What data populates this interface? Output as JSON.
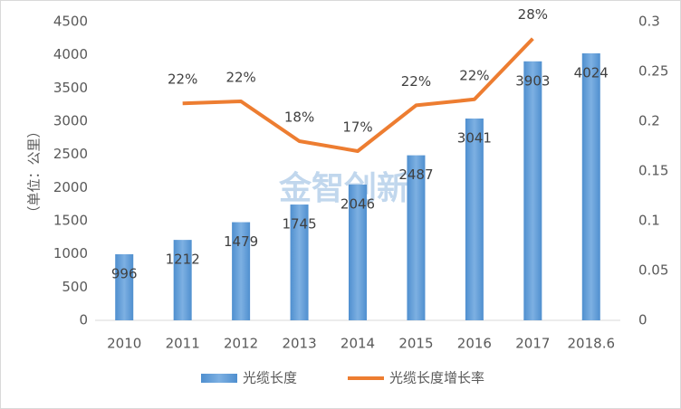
{
  "chart_data": {
    "type": "bar_line",
    "watermark": "金智创新",
    "y_label": "（单位：公里）",
    "categories": [
      "2010",
      "2011",
      "2012",
      "2013",
      "2014",
      "2015",
      "2016",
      "2017",
      "2018.6"
    ],
    "series": [
      {
        "name": "光缆长度",
        "color": "#5b9bd5",
        "type": "bar",
        "values": [
          996,
          1212,
          1479,
          1745,
          2046,
          2487,
          3041,
          3903,
          4024
        ]
      },
      {
        "name": "光缆长度增长率",
        "color": "#ed7d31",
        "type": "line",
        "axis": "y2",
        "values": [
          null,
          0.218,
          0.22,
          0.18,
          0.17,
          0.216,
          0.222,
          0.283,
          null
        ],
        "value_labels": [
          null,
          "22%",
          "22%",
          "18%",
          "17%",
          "22%",
          "22%",
          "28%",
          null
        ]
      }
    ],
    "ylim": [
      0,
      4500
    ],
    "yticks": [
      0,
      500,
      1000,
      1500,
      2000,
      2500,
      3000,
      3500,
      4000,
      4500
    ],
    "y2lim": [
      0,
      0.3
    ],
    "y2ticks": [
      0,
      0.05,
      0.1,
      0.15,
      0.2,
      0.25,
      0.3
    ],
    "legend": "bottom"
  }
}
